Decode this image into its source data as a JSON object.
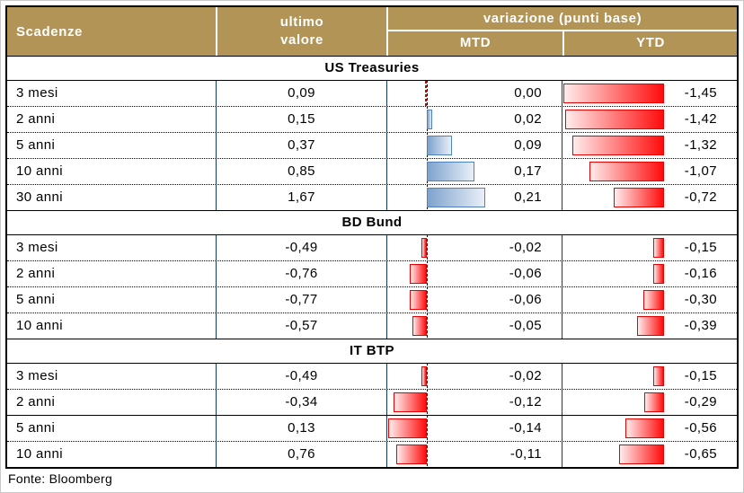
{
  "header": {
    "scadenze": "Scadenze",
    "ultimo_line1": "ultimo",
    "ultimo_line2": "valore",
    "variazione": "variazione (punti base)",
    "mtd": "MTD",
    "ytd": "YTD"
  },
  "footer": {
    "source": "Fonte: Bloomberg"
  },
  "colors": {
    "header_bg": "#b19456",
    "header_text": "#ffffff",
    "grid_line": "#0f3c5f",
    "outer_border": "#000000",
    "bar_blue_border": "#4f81bd",
    "bar_blue_dark": "#7ea3cd",
    "bar_blue_light": "#e9eff7",
    "bar_red_border": "#e60000",
    "bar_red_dark": "#ff0c0c",
    "bar_red_light": "#ffecec"
  },
  "chart_data": {
    "type": "table",
    "title": "variazione (punti base)",
    "columns": [
      "Scadenze",
      "ultimo valore",
      "variazione MTD (punti base)",
      "variazione YTD (punti base)"
    ],
    "bar_columns": {
      "mtd": {
        "style": "databar",
        "axis": "dashed-zero",
        "positive_color": "blue",
        "negative_color": "red",
        "min": -0.14,
        "max": 0.21
      },
      "ytd": {
        "style": "databar",
        "axis": "right-zero",
        "negative_color": "red",
        "min": -1.45,
        "max": 0
      }
    },
    "sections": [
      {
        "title": "US Treasuries",
        "rows": [
          {
            "label": "3 mesi",
            "last": "0,09",
            "mtd": 0.0,
            "mtd_label": "0,00",
            "ytd": -1.45,
            "ytd_label": "-1,45"
          },
          {
            "label": "2 anni",
            "last": "0,15",
            "mtd": 0.02,
            "mtd_label": "0,02",
            "ytd": -1.42,
            "ytd_label": "-1,42"
          },
          {
            "label": "5 anni",
            "last": "0,37",
            "mtd": 0.09,
            "mtd_label": "0,09",
            "ytd": -1.32,
            "ytd_label": "-1,32"
          },
          {
            "label": "10 anni",
            "last": "0,85",
            "mtd": 0.17,
            "mtd_label": "0,17",
            "ytd": -1.07,
            "ytd_label": "-1,07"
          },
          {
            "label": "30 anni",
            "last": "1,67",
            "mtd": 0.21,
            "mtd_label": "0,21",
            "ytd": -0.72,
            "ytd_label": "-0,72"
          }
        ]
      },
      {
        "title": "BD Bund",
        "rows": [
          {
            "label": "3 mesi",
            "last": "-0,49",
            "mtd": -0.02,
            "mtd_label": "-0,02",
            "ytd": -0.15,
            "ytd_label": "-0,15"
          },
          {
            "label": "2 anni",
            "last": "-0,76",
            "mtd": -0.06,
            "mtd_label": "-0,06",
            "ytd": -0.16,
            "ytd_label": "-0,16"
          },
          {
            "label": "5 anni",
            "last": "-0,77",
            "mtd": -0.06,
            "mtd_label": "-0,06",
            "ytd": -0.3,
            "ytd_label": "-0,30"
          },
          {
            "label": "10 anni",
            "last": "-0,57",
            "mtd": -0.05,
            "mtd_label": "-0,05",
            "ytd": -0.39,
            "ytd_label": "-0,39"
          }
        ]
      },
      {
        "title": "IT BTP",
        "rows": [
          {
            "label": "3 mesi",
            "last": "-0,49",
            "mtd": -0.02,
            "mtd_label": "-0,02",
            "ytd": -0.15,
            "ytd_label": "-0,15"
          },
          {
            "label": "2 anni",
            "last": "-0,34",
            "mtd": -0.12,
            "mtd_label": "-0,12",
            "ytd": -0.29,
            "ytd_label": "-0,29"
          },
          {
            "label": "5 anni",
            "last": "0,13",
            "mtd": -0.14,
            "mtd_label": "-0,14",
            "ytd": -0.56,
            "ytd_label": "-0,56",
            "sep": "solid"
          },
          {
            "label": "10 anni",
            "last": "0,76",
            "mtd": -0.11,
            "mtd_label": "-0,11",
            "ytd": -0.65,
            "ytd_label": "-0,65"
          }
        ]
      }
    ]
  }
}
